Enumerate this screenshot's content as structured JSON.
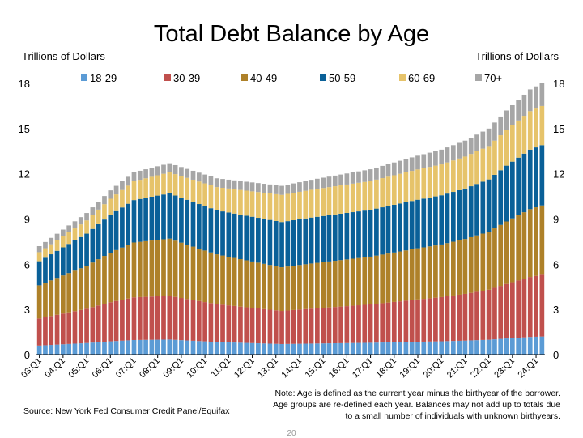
{
  "slide": {
    "title": "Total Debt Balance by Age",
    "left_axis_label": "Trillions of Dollars",
    "right_axis_label": "Trillions of Dollars",
    "note": "Note: Age is defined as the current year minus the birthyear of the borrower. Age groups are re-defined each year. Balances may not add up to totals due to a small number of individuals with unknown birthyears.",
    "source": "Source: New York Fed Consumer Credit Panel/Equifax",
    "page_number": "20"
  },
  "chart_data": {
    "type": "bar",
    "stacked": true,
    "title": "Total Debt Balance by Age",
    "ylabel": "Trillions of Dollars",
    "ylim": [
      0,
      18
    ],
    "yticks": [
      0,
      3,
      6,
      9,
      12,
      15,
      18
    ],
    "x_tick_labels": [
      "03:Q1",
      "04:Q1",
      "05:Q1",
      "06:Q1",
      "07:Q1",
      "08:Q1",
      "09:Q1",
      "10:Q1",
      "11:Q1",
      "12:Q1",
      "13:Q1",
      "14:Q1",
      "15:Q1",
      "16:Q1",
      "17:Q1",
      "18:Q1",
      "19:Q1",
      "20:Q1",
      "21:Q1",
      "22:Q1",
      "23:Q1",
      "24:Q1"
    ],
    "legend_position": "top",
    "grid": false,
    "colors": {
      "18-29": "#5b9bd5",
      "30-39": "#c0504d",
      "40-49": "#ae8129",
      "50-59": "#0a6098",
      "60-69": "#e6c36a",
      "70+": "#a6a6a6"
    },
    "key_totals": {
      "03:Q1": 7.2,
      "08:Q3 (peak)": 12.7,
      "13:Q2 (trough)": 11.2,
      "24:Q2": 18.0
    },
    "series": [
      {
        "name": "18-29",
        "key_values": {
          "03:Q1": 0.6,
          "08:Q3": 1.0,
          "13:Q2": 0.7,
          "24:Q2": 1.2
        }
      },
      {
        "name": "30-39",
        "key_values": {
          "03:Q1": 1.8,
          "08:Q3": 2.9,
          "13:Q2": 2.2,
          "24:Q2": 4.1
        }
      },
      {
        "name": "40-49",
        "key_values": {
          "03:Q1": 2.2,
          "08:Q3": 3.8,
          "13:Q2": 2.9,
          "24:Q2": 4.6
        }
      },
      {
        "name": "50-59",
        "key_values": {
          "03:Q1": 1.6,
          "08:Q3": 3.0,
          "13:Q2": 3.0,
          "24:Q2": 4.0
        }
      },
      {
        "name": "60-69",
        "key_values": {
          "03:Q1": 0.6,
          "08:Q3": 1.4,
          "13:Q2": 1.8,
          "24:Q2": 2.6
        }
      },
      {
        "name": "70+",
        "key_values": {
          "03:Q1": 0.4,
          "08:Q3": 0.6,
          "13:Q2": 0.6,
          "24:Q2": 1.5
        }
      }
    ]
  }
}
